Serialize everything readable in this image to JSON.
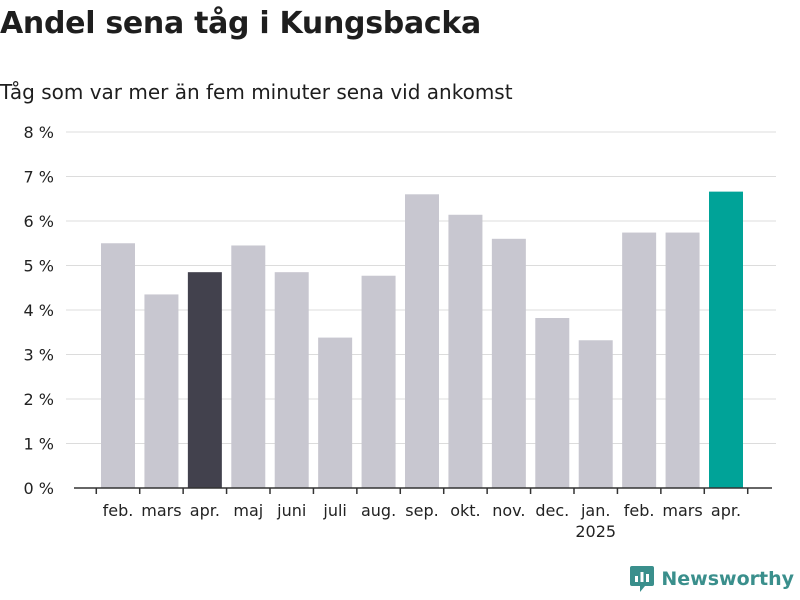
{
  "header": {
    "title": "Andel sena tåg i Kungsbacka",
    "subtitle": "Tåg som var mer än fem minuter sena vid ankomst"
  },
  "brand": {
    "name": "Newsworthy",
    "icon": "newsworthy-logo-icon",
    "color": "#3a8f8c"
  },
  "chart_data": {
    "type": "bar",
    "categories": [
      "feb.",
      "mars",
      "apr.",
      "maj",
      "juni",
      "juli",
      "aug.",
      "sep.",
      "okt.",
      "nov.",
      "dec.",
      "jan.",
      "feb.",
      "mars",
      "apr."
    ],
    "year_labels": [
      {
        "index": 11,
        "label": "2025"
      }
    ],
    "values": [
      5.5,
      4.35,
      4.85,
      5.45,
      4.85,
      3.38,
      4.77,
      6.6,
      6.14,
      5.6,
      3.82,
      3.32,
      5.74,
      5.74,
      6.66
    ],
    "highlight": {
      "2": "#42414d",
      "14": "#00a398"
    },
    "bar_color": "#c8c7d0",
    "y_ticks": [
      "0 %",
      "1 %",
      "2 %",
      "3 %",
      "4 %",
      "5 %",
      "6 %",
      "7 %",
      "8 %"
    ],
    "ylim": [
      0,
      8
    ],
    "grid": true
  }
}
